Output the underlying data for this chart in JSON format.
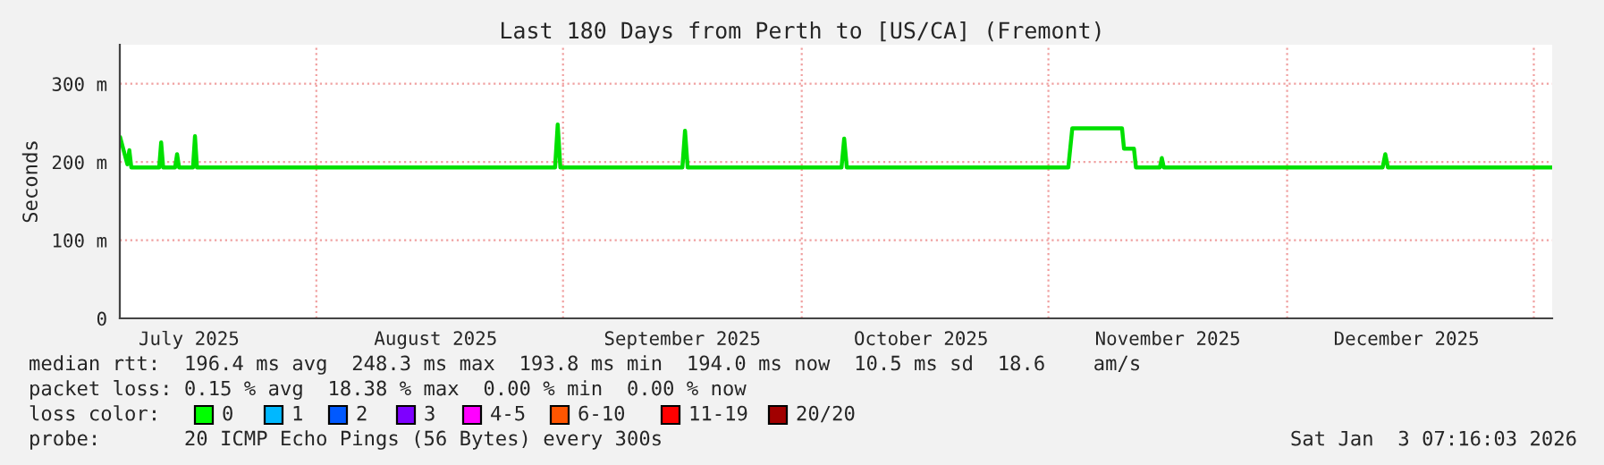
{
  "chart_data": {
    "type": "line",
    "title": "Last 180 Days from Perth to [US/CA] (Fremont)",
    "ylabel": "Seconds",
    "x": [
      "2025-07-07T08:00",
      "2025-07-08T06:00",
      "2025-07-08T12:00",
      "2025-07-08T18:00",
      "2025-07-12T06:00",
      "2025-07-12T12:00",
      "2025-07-12T18:00",
      "2025-07-14T06:00",
      "2025-07-14T12:00",
      "2025-07-14T18:00",
      "2025-07-16T12:00",
      "2025-07-16T18:00",
      "2025-07-17T00:00",
      "2025-08-31T00:00",
      "2025-08-31T08:00",
      "2025-08-31T16:00",
      "2025-09-16T00:00",
      "2025-09-16T08:00",
      "2025-09-16T16:00",
      "2025-10-06T00:00",
      "2025-10-06T08:00",
      "2025-10-06T16:00",
      "2025-11-03T12:00",
      "2025-11-04T00:00",
      "2025-11-10T06:00",
      "2025-11-10T12:00",
      "2025-11-11T18:00",
      "2025-11-12T00:00",
      "2025-11-15T00:00",
      "2025-11-15T06:00",
      "2025-11-15T12:00",
      "2025-12-13T00:00",
      "2025-12-13T08:00",
      "2025-12-13T16:00",
      "2026-01-03T06:00"
    ],
    "series": [
      {
        "color": "#00e000",
        "values": [
          232,
          197,
          215,
          193,
          193,
          225,
          193,
          193,
          210,
          193,
          193,
          233,
          193,
          193,
          248,
          193,
          193,
          240,
          193,
          193,
          230,
          193,
          193,
          243,
          243,
          217,
          217,
          193,
          193,
          205,
          193,
          193,
          210,
          193,
          193
        ]
      }
    ],
    "xlim": [
      "2025-07-07T07:16",
      "2026-01-03T07:16"
    ],
    "xticks": [
      {
        "value": "2025-07-16",
        "label": "July 2025"
      },
      {
        "value": "2025-08-16",
        "label": "August 2025"
      },
      {
        "value": "2025-09-16",
        "label": "September 2025"
      },
      {
        "value": "2025-10-16",
        "label": "October 2025"
      },
      {
        "value": "2025-11-16",
        "label": "November 2025"
      },
      {
        "value": "2025-12-16",
        "label": "December 2025"
      }
    ],
    "ylim": [
      0,
      350
    ],
    "yticks": [
      0,
      {
        "value": 100,
        "label": "100 m"
      },
      {
        "value": 200,
        "label": "200 m"
      },
      {
        "value": 300,
        "label": "300 m"
      }
    ],
    "grid": "y",
    "ref_lines": [
      {
        "axis": "x",
        "value": "2025-08-01",
        "color": "#f0a0a0",
        "line_style": "dotted"
      },
      {
        "axis": "x",
        "value": "2025-09-01",
        "color": "#f0a0a0",
        "line_style": "dotted"
      },
      {
        "axis": "x",
        "value": "2025-10-01",
        "color": "#f0a0a0",
        "line_style": "dotted"
      },
      {
        "axis": "x",
        "value": "2025-11-01",
        "color": "#f0a0a0",
        "line_style": "dotted"
      },
      {
        "axis": "x",
        "value": "2025-12-01",
        "color": "#f0a0a0",
        "line_style": "dotted"
      },
      {
        "axis": "x",
        "value": "2026-01-01",
        "color": "#f0a0a0",
        "line_style": "dotted"
      }
    ],
    "annotations": [
      "median rtt:  196.4 ms avg  248.3 ms max  193.8 ms min  194.0 ms now  10.5 ms sd  18.6    am/s",
      "packet loss: 0.15 % avg  18.38 % max  0.00 % min  0.00 % now",
      "loss color:",
      "0",
      "1",
      "2",
      "3",
      "4-5",
      "6-10",
      "11-19",
      "20/20",
      "probe:       20 ICMP Echo Pings (56 Bytes) every 300s",
      "Sat Jan  3 07:16:03 2026"
    ]
  }
}
